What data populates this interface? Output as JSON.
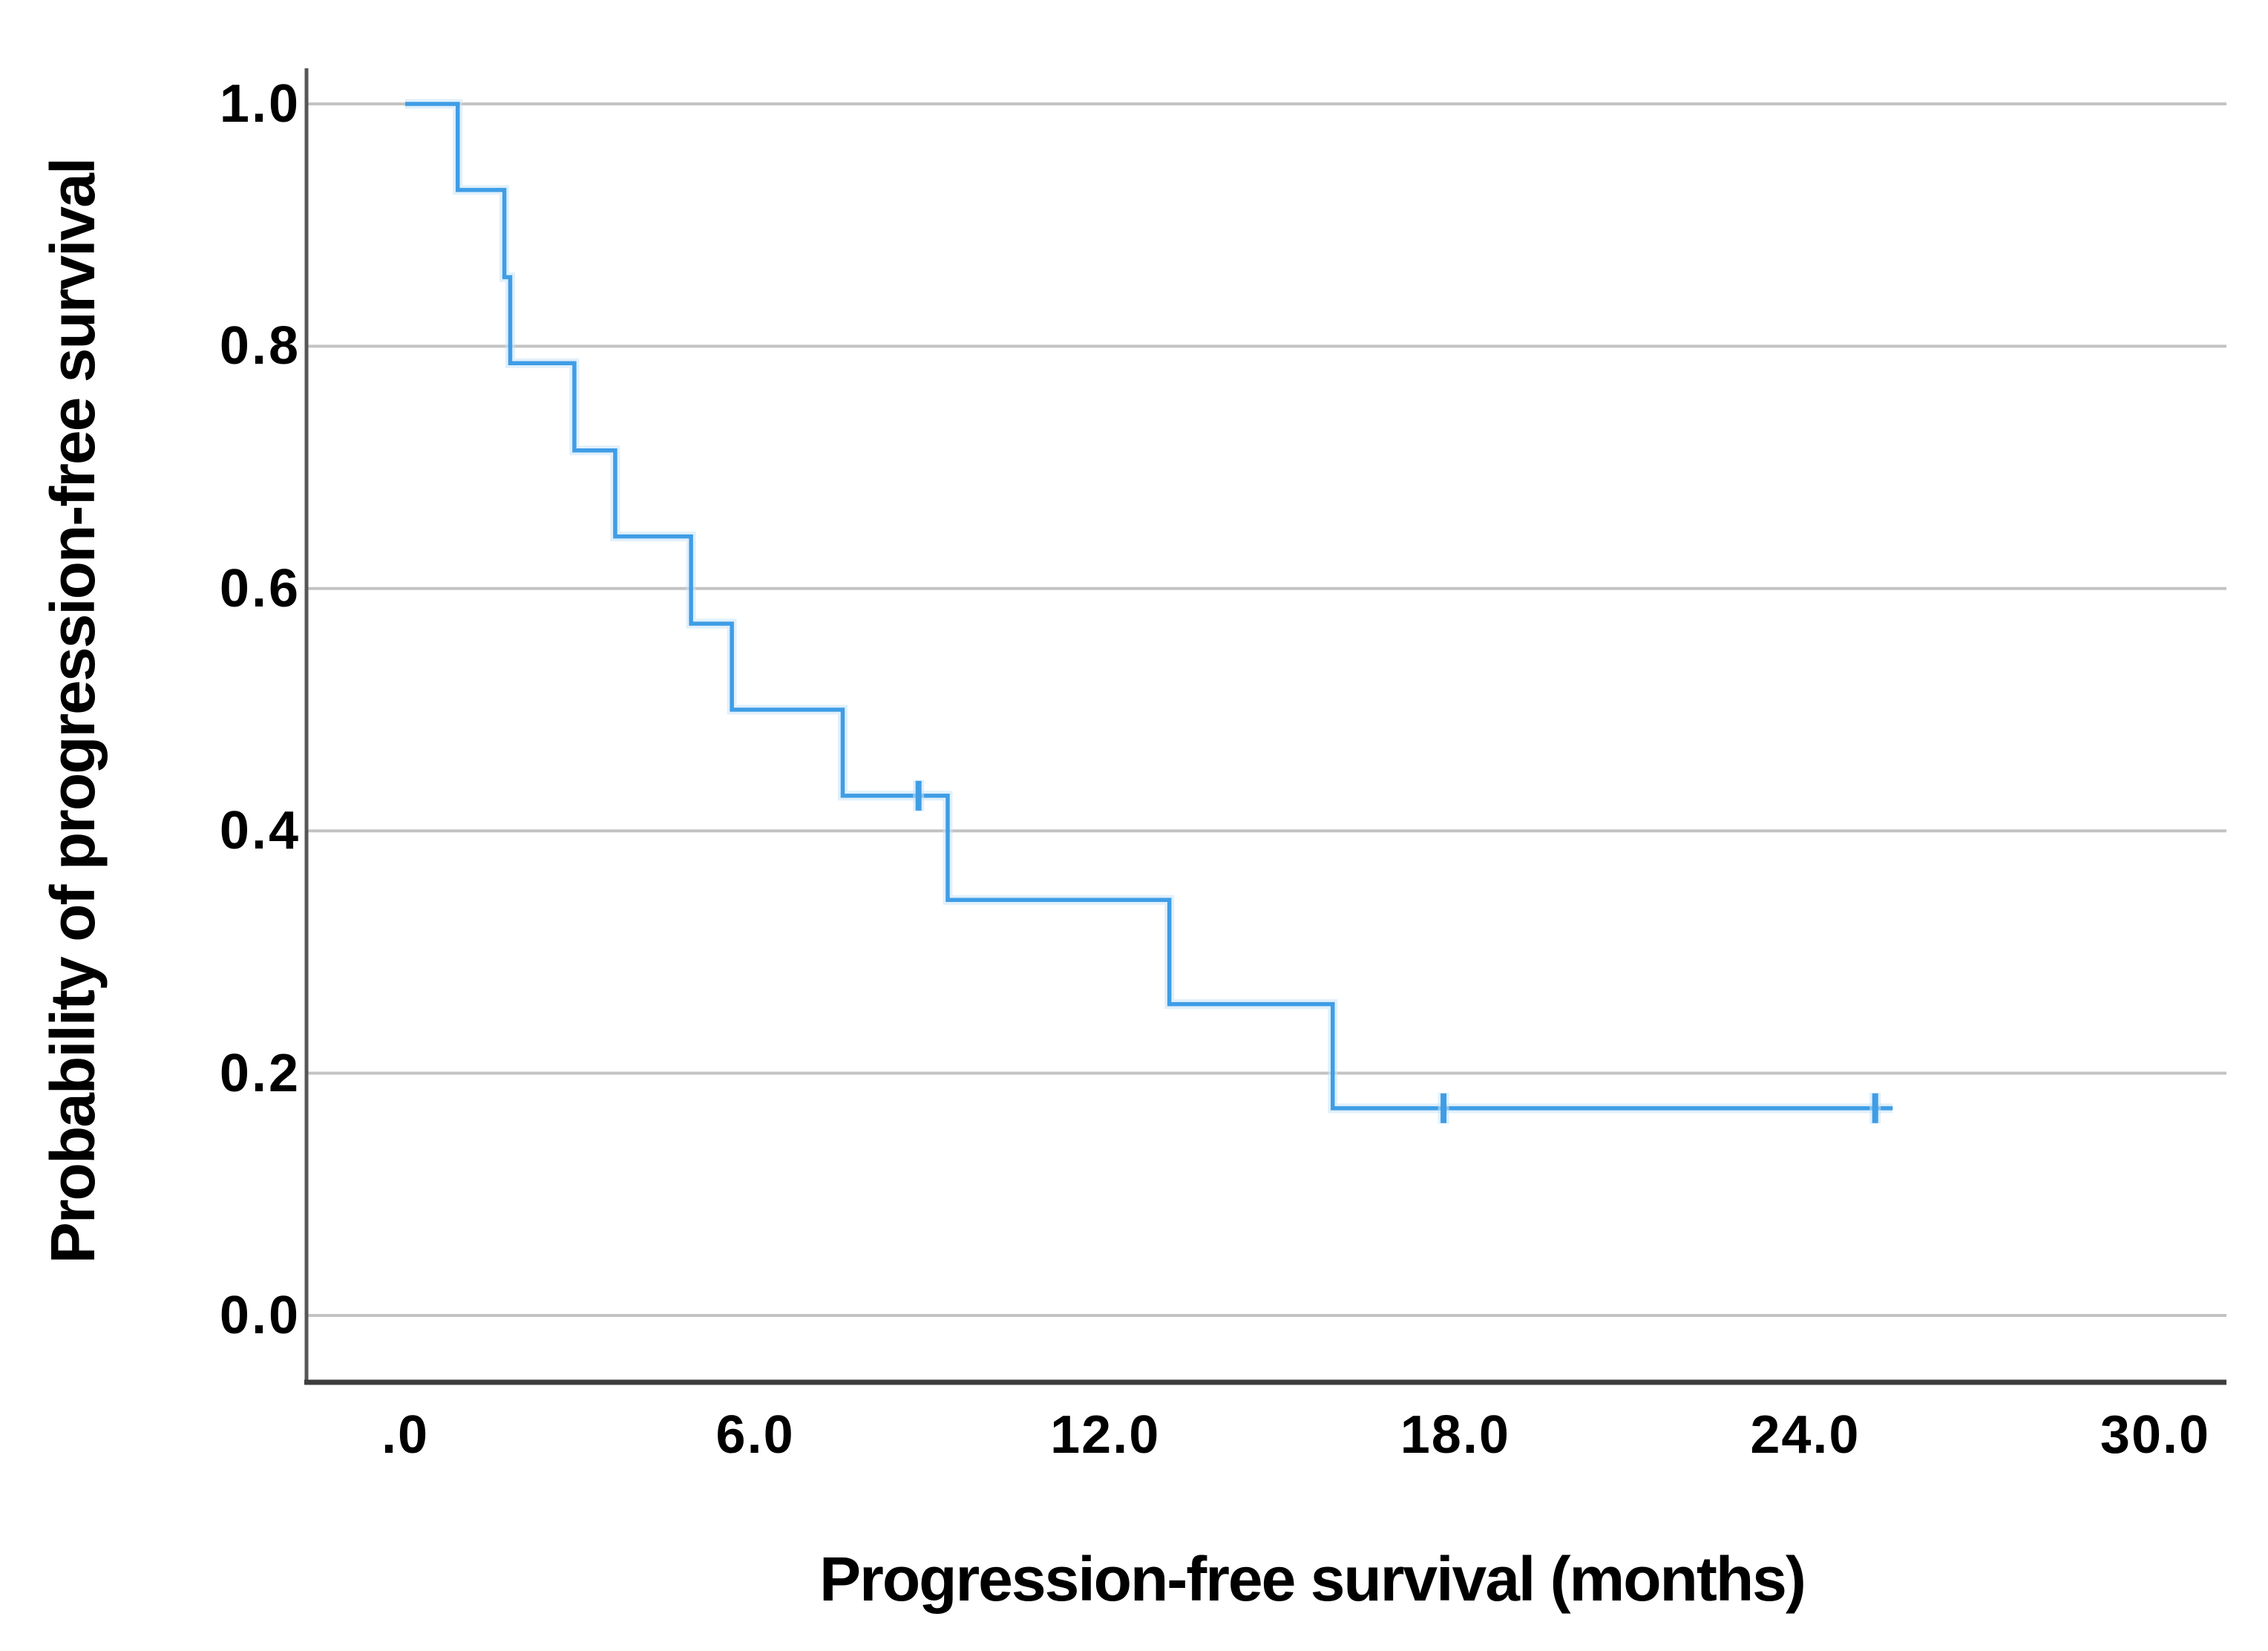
{
  "chart_data": {
    "type": "line",
    "subtype": "kaplan-meier-step",
    "title": "",
    "xlabel": "Progression-free survival (months)",
    "ylabel": "Probability of progression-free survival",
    "x_ticks": [
      {
        "label": ".0",
        "value": 0
      },
      {
        "label": "6.0",
        "value": 6
      },
      {
        "label": "12.0",
        "value": 12
      },
      {
        "label": "18.0",
        "value": 18
      },
      {
        "label": "24.0",
        "value": 24
      },
      {
        "label": "30.0",
        "value": 30
      }
    ],
    "y_ticks": [
      {
        "label": "1.0",
        "value": 1.0
      },
      {
        "label": "0.8",
        "value": 0.8
      },
      {
        "label": "0.6",
        "value": 0.6
      },
      {
        "label": "0.4",
        "value": 0.4
      },
      {
        "label": "0.2",
        "value": 0.2
      },
      {
        "label": "0.0",
        "value": 0.0
      }
    ],
    "xlim": [
      -1.7,
      31.2
    ],
    "ylim": [
      -0.06,
      1.03
    ],
    "grid": "horizontal-only",
    "legend": "none",
    "series": [
      {
        "name": "Progression-free survival",
        "start": {
          "time": 0,
          "prob": 1.0
        },
        "events": [
          {
            "time": 0.9,
            "prob": 0.929
          },
          {
            "time": 1.7,
            "prob": 0.857
          },
          {
            "time": 1.8,
            "prob": 0.786
          },
          {
            "time": 2.9,
            "prob": 0.714
          },
          {
            "time": 3.6,
            "prob": 0.643
          },
          {
            "time": 4.9,
            "prob": 0.571
          },
          {
            "time": 5.6,
            "prob": 0.5
          },
          {
            "time": 7.5,
            "prob": 0.429
          },
          {
            "time": 9.3,
            "prob": 0.343
          },
          {
            "time": 13.1,
            "prob": 0.257
          },
          {
            "time": 15.9,
            "prob": 0.171
          }
        ],
        "censored": [
          {
            "time": 8.8,
            "prob": 0.429
          },
          {
            "time": 17.8,
            "prob": 0.171
          },
          {
            "time": 25.2,
            "prob": 0.171
          }
        ],
        "end_time": 25.5
      }
    ]
  },
  "colors": {
    "curve": "#3F9DE6",
    "curve_halo": "#C9E4F7",
    "gridline": "#C3C3C3",
    "axis_left": "#565656",
    "axis_bottom": "#3D3D3D",
    "text": "#000000",
    "background": "#FFFFFF"
  }
}
